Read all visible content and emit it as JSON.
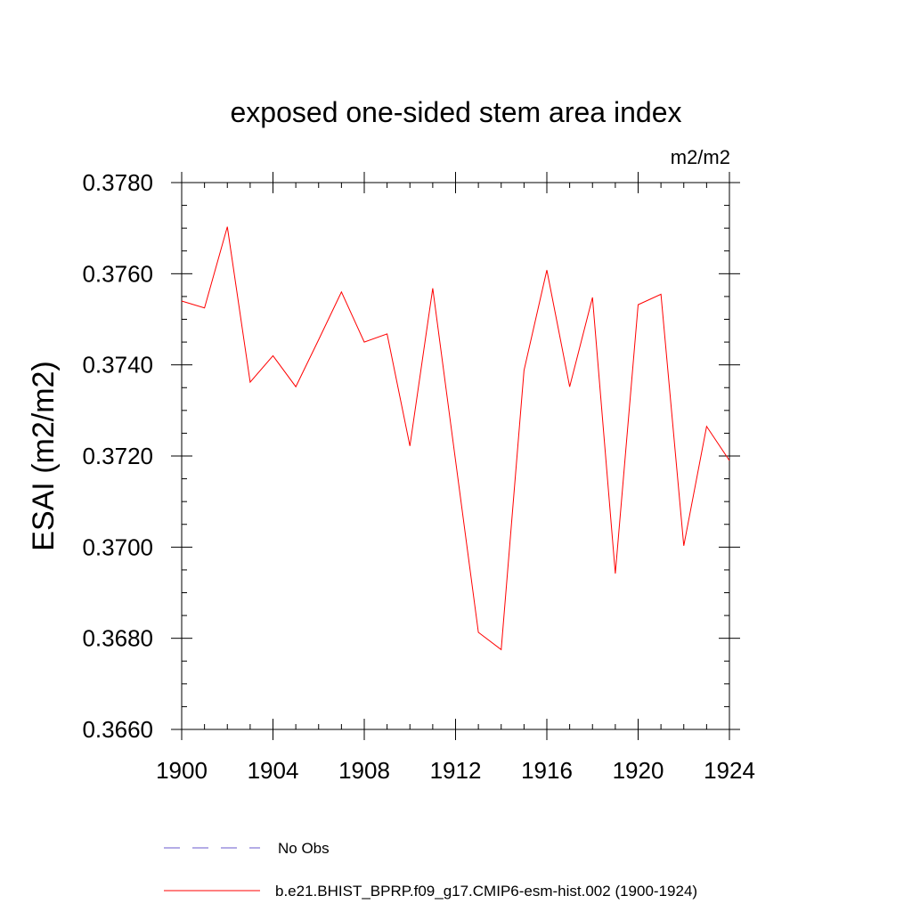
{
  "chart_data": {
    "type": "line",
    "title": "exposed one-sided stem area index",
    "units": "m2/m2",
    "xlabel": "",
    "ylabel": "ESAI  (m2/m2)",
    "xlim": [
      1900,
      1924
    ],
    "ylim": [
      0.366,
      0.378
    ],
    "x_ticks": [
      1900,
      1904,
      1908,
      1912,
      1916,
      1920,
      1924
    ],
    "x_tick_labels": [
      "1900",
      "1904",
      "1908",
      "1912",
      "1916",
      "1920",
      "1924"
    ],
    "y_ticks": [
      0.366,
      0.368,
      0.37,
      0.372,
      0.374,
      0.376,
      0.378
    ],
    "y_tick_labels": [
      "0.3660",
      "0.3680",
      "0.3700",
      "0.3720",
      "0.3740",
      "0.3760",
      "0.3780"
    ],
    "grid": false,
    "legend_position": "bottom",
    "series": [
      {
        "name": "b.e21.BHIST_BPRP.f09_g17.CMIP6-esm-hist.002 (1900-1924)",
        "color": "#ff0000",
        "style": "solid",
        "x": [
          1900,
          1901,
          1902,
          1903,
          1904,
          1905,
          1906,
          1907,
          1908,
          1909,
          1910,
          1911,
          1912,
          1913,
          1914,
          1915,
          1916,
          1917,
          1918,
          1919,
          1920,
          1921,
          1922,
          1923,
          1924
        ],
        "values": [
          0.3754,
          0.37525,
          0.37703,
          0.37362,
          0.3742,
          0.37352,
          0.37455,
          0.3756,
          0.3745,
          0.37468,
          0.37222,
          0.37568,
          0.3719,
          0.36813,
          0.36775,
          0.37388,
          0.37608,
          0.37352,
          0.37548,
          0.36942,
          0.37532,
          0.37555,
          0.37003,
          0.37265,
          0.3719
        ]
      }
    ],
    "legend": [
      {
        "label": "No Obs",
        "color": "#6a5acd",
        "style": "dashed"
      },
      {
        "label": "b.e21.BHIST_BPRP.f09_g17.CMIP6-esm-hist.002 (1900-1924)",
        "color": "#ff0000",
        "style": "solid"
      }
    ]
  }
}
